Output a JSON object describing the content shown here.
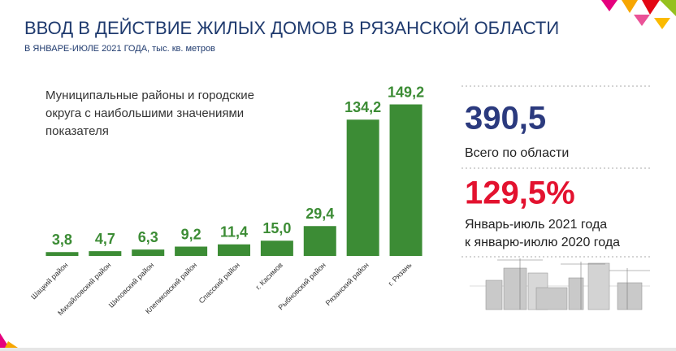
{
  "chart_data": {
    "type": "bar",
    "title": "ВВОД В ДЕЙСТВИЕ ЖИЛЫХ ДОМОВ В РЯЗАНСКОЙ ОБЛАСТИ",
    "subtitle": "В ЯНВАРЕ-ИЮЛЕ  2021 ГОДА, тыс. кв. метров",
    "annotation": [
      "Муниципальные районы и городские",
      "округа с наибольшими значениями",
      "показателя"
    ],
    "categories": [
      "Шацкий район",
      "Михайловский район",
      "Шиловский район",
      "Клепиковский район",
      "Спасский район",
      "г. Касимов",
      "Рыбновский район",
      "Рязанский район",
      "г. Рязань"
    ],
    "values": [
      3.8,
      4.7,
      6.3,
      9.2,
      11.4,
      15.0,
      29.4,
      134.2,
      149.2
    ],
    "value_labels": [
      "3,8",
      "4,7",
      "6,3",
      "9,2",
      "11,4",
      "15,0",
      "29,4",
      "134,2",
      "149,2"
    ],
    "color": "#3c8c35",
    "ylim": [
      0,
      160
    ]
  },
  "summary": {
    "total": "390,5",
    "total_label": "Всего по области",
    "growth": "129,5%",
    "growth_label": [
      "Январь-июль 2021 года",
      "к январю-июлю 2020 года"
    ]
  }
}
